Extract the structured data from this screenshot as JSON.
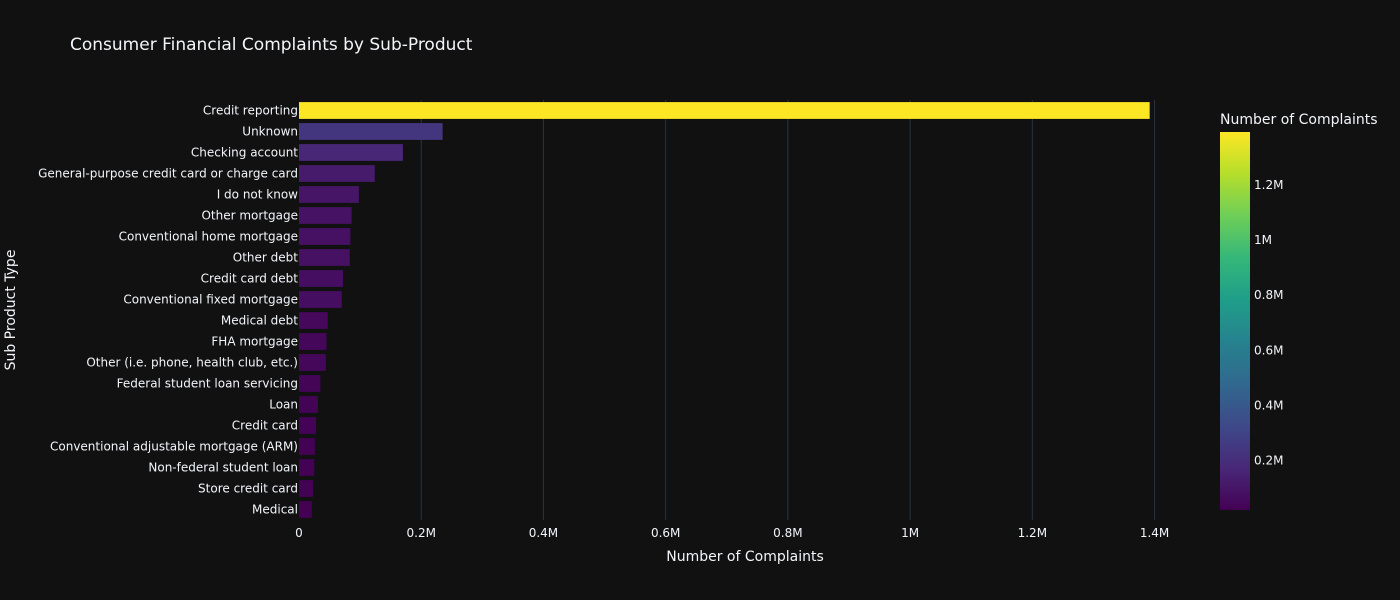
{
  "chart_data": {
    "type": "bar",
    "orientation": "horizontal",
    "title": "Consumer Financial Complaints by Sub-Product",
    "xlabel": "Number of Complaints",
    "ylabel": "Sub Product Type",
    "xlim": [
      0,
      1440000
    ],
    "x_ticks": [
      {
        "value": 0,
        "label": "0"
      },
      {
        "value": 200000,
        "label": "0.2M"
      },
      {
        "value": 400000,
        "label": "0.4M"
      },
      {
        "value": 600000,
        "label": "0.6M"
      },
      {
        "value": 800000,
        "label": "0.8M"
      },
      {
        "value": 1000000,
        "label": "1M"
      },
      {
        "value": 1200000,
        "label": "1.2M"
      },
      {
        "value": 1400000,
        "label": "1.4M"
      }
    ],
    "categories": [
      "Credit reporting",
      "Unknown",
      "Checking account",
      "General-purpose credit card or charge card",
      "I do not know",
      "Other mortgage",
      "Conventional home mortgage",
      "Other debt",
      "Credit card debt",
      "Conventional fixed mortgage",
      "Medical debt",
      "FHA mortgage",
      "Other (i.e. phone, health club, etc.)",
      "Federal student loan servicing",
      "Loan",
      "Credit card",
      "Conventional adjustable mortgage (ARM)",
      "Non-federal student loan",
      "Store credit card",
      "Medical"
    ],
    "values": [
      1392000,
      235000,
      170000,
      124000,
      98000,
      86000,
      84000,
      83000,
      72000,
      70000,
      47000,
      45000,
      44000,
      35000,
      31000,
      28000,
      26000,
      25000,
      23000,
      21000
    ],
    "grid": true,
    "colorbar": {
      "title": "Number of Complaints",
      "colorscale": "Viridis",
      "range": [
        21000,
        1392000
      ],
      "ticks": [
        {
          "value": 200000,
          "label": "0.2M"
        },
        {
          "value": 400000,
          "label": "0.4M"
        },
        {
          "value": 600000,
          "label": "0.6M"
        },
        {
          "value": 800000,
          "label": "0.8M"
        },
        {
          "value": 1000000,
          "label": "1M"
        },
        {
          "value": 1200000,
          "label": "1.2M"
        }
      ]
    },
    "colors": {
      "background": "#111111",
      "grid": "#283442",
      "text": "#f2f5fa"
    }
  }
}
